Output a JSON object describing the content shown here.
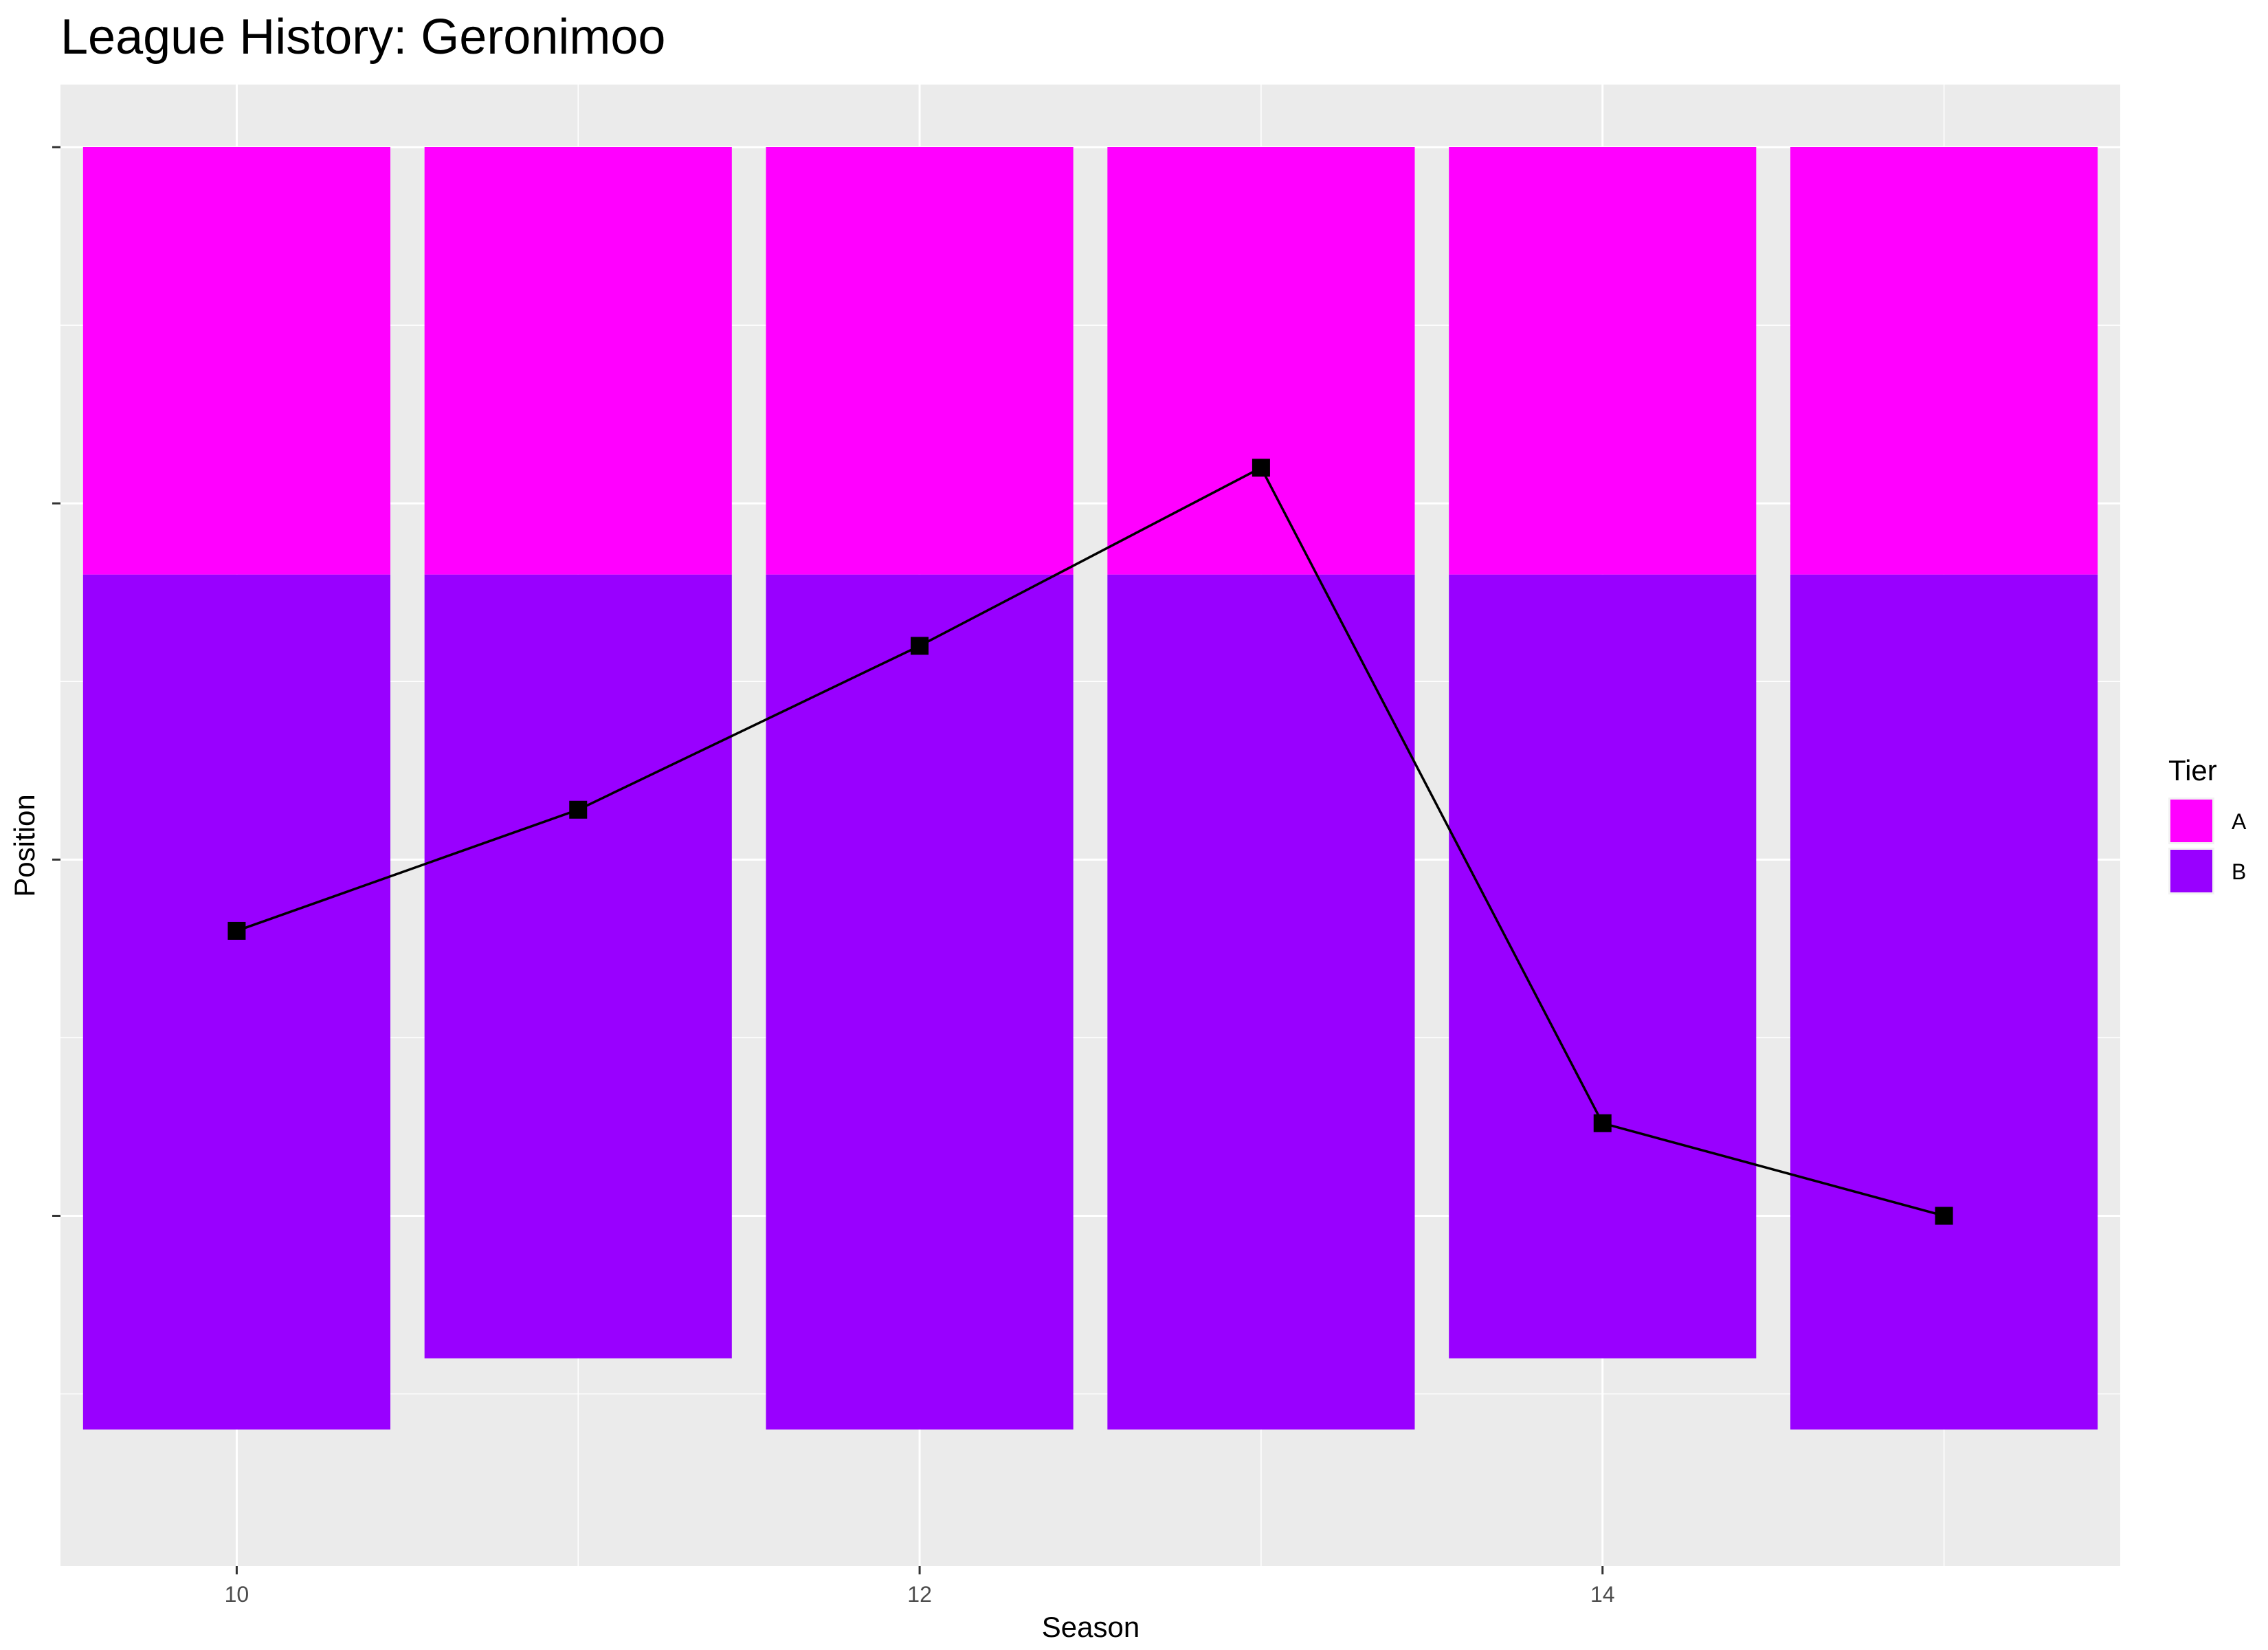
{
  "chart_data": {
    "type": "bar",
    "title": "League History: Geronimoo",
    "xlabel": "Season",
    "ylabel": "Position",
    "x_ticks": [
      10,
      12,
      14
    ],
    "xlim": [
      9.5,
      15.5
    ],
    "ylim": [
      0,
      38
    ],
    "grid": true,
    "legend": {
      "title": "Tier",
      "position": "right",
      "entries": [
        {
          "name": "A",
          "color": "#FF00FF"
        },
        {
          "name": "B",
          "color": "#9900FF"
        }
      ]
    },
    "bars": [
      {
        "season": 10,
        "tier_a": 12,
        "tier_b": 24
      },
      {
        "season": 11,
        "tier_a": 12,
        "tier_b": 22
      },
      {
        "season": 12,
        "tier_a": 12,
        "tier_b": 24
      },
      {
        "season": 13,
        "tier_a": 12,
        "tier_b": 24
      },
      {
        "season": 14,
        "tier_a": 12,
        "tier_b": 22
      },
      {
        "season": 15,
        "tier_a": 12,
        "tier_b": 24
      }
    ],
    "line": {
      "color": "#000000",
      "x": [
        10,
        11,
        12,
        13,
        14,
        15
      ],
      "y": [
        22,
        18.6,
        14,
        9,
        27.4,
        30
      ]
    }
  },
  "colors": {
    "panel_background": "#EBEBEB",
    "grid": "#FFFFFF"
  }
}
